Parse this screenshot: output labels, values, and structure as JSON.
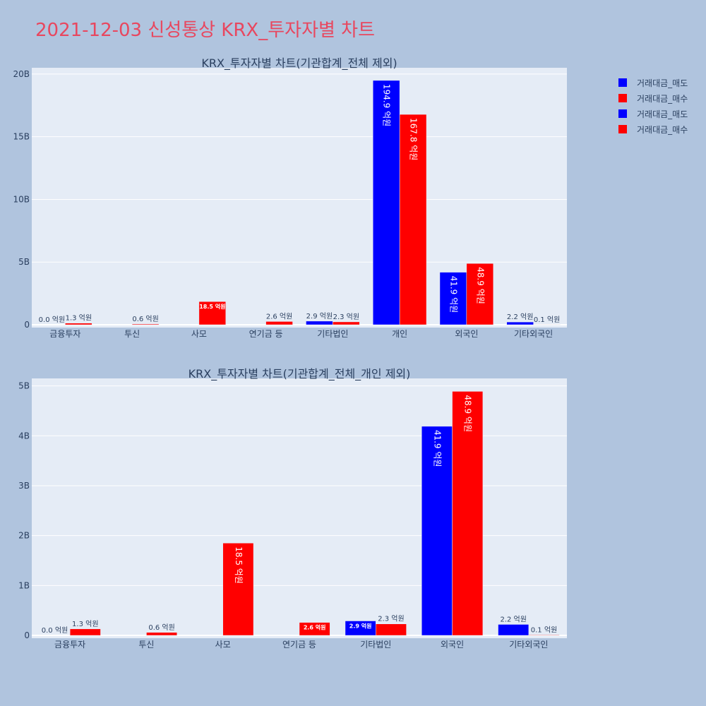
{
  "page_title": "2021-12-03 신성통상 KRX_투자자별 차트",
  "colors": {
    "sell": "#0000ff",
    "buy": "#ff0000",
    "plot_bg": "#e5ecf6",
    "paper_bg": "#b0c4de"
  },
  "legend": [
    {
      "label": "거래대금_매도",
      "color": "#0000ff"
    },
    {
      "label": "거래대금_매수",
      "color": "#ff0000"
    },
    {
      "label": "거래대금_매도",
      "color": "#0000ff"
    },
    {
      "label": "거래대금_매수",
      "color": "#ff0000"
    }
  ],
  "chart_data": [
    {
      "type": "bar",
      "title": "KRX_투자자별 차트(기관합계_전체 제외)",
      "categories": [
        "금융투자",
        "투신",
        "사모",
        "연기금 등",
        "기타법인",
        "개인",
        "외국인",
        "기타외국인"
      ],
      "ylim": [
        0,
        20.5
      ],
      "yticks": [
        0,
        5,
        10,
        15,
        20
      ],
      "ytick_labels": [
        "0",
        "5B",
        "10B",
        "15B",
        "20B"
      ],
      "series": [
        {
          "name": "거래대금_매도",
          "values": [
            0.0,
            null,
            null,
            null,
            0.29,
            19.49,
            4.19,
            0.22
          ],
          "labels": [
            "0.0 억원",
            "",
            "",
            "",
            "2.9 억원",
            "194.9 억원",
            "41.9 억원",
            "2.2 억원"
          ]
        },
        {
          "name": "거래대금_매수",
          "values": [
            0.13,
            0.06,
            1.85,
            0.26,
            0.23,
            16.78,
            4.89,
            0.01
          ],
          "labels": [
            "1.3 억원",
            "0.6 억원",
            "18.5 억원",
            "2.6 억원",
            "2.3 억원",
            "167.8 억원",
            "48.9 억원",
            "0.1 억원"
          ]
        }
      ]
    },
    {
      "type": "bar",
      "title": "KRX_투자자별 차트(기관합계_전체_개인 제외)",
      "categories": [
        "금융투자",
        "투신",
        "사모",
        "연기금 등",
        "기타법인",
        "외국인",
        "기타외국인"
      ],
      "ylim": [
        0,
        5.15
      ],
      "yticks": [
        0,
        1,
        2,
        3,
        4,
        5
      ],
      "ytick_labels": [
        "0",
        "1B",
        "2B",
        "3B",
        "4B",
        "5B"
      ],
      "series": [
        {
          "name": "거래대금_매도",
          "values": [
            0.0,
            null,
            null,
            null,
            0.29,
            4.19,
            0.22
          ],
          "labels": [
            "0.0 억원",
            "",
            "",
            "",
            "2.9 억원",
            "41.9 억원",
            "2.2 억원"
          ]
        },
        {
          "name": "거래대금_매수",
          "values": [
            0.13,
            0.06,
            1.85,
            0.26,
            0.23,
            4.89,
            0.01
          ],
          "labels": [
            "1.3 억원",
            "0.6 억원",
            "18.5 억원",
            "2.6 억원",
            "2.3 억원",
            "48.9 억원",
            "0.1 억원"
          ]
        }
      ]
    }
  ]
}
